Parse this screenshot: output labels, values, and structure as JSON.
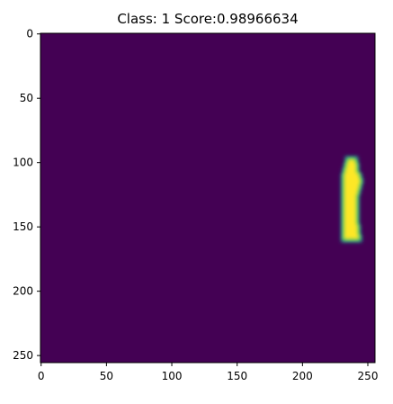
{
  "chart_data": {
    "type": "heatmap",
    "title": "Class: 1 Score:0.98966634",
    "xlabel": "",
    "ylabel": "",
    "xlim": [
      0,
      256
    ],
    "ylim": [
      256,
      0
    ],
    "grid": false,
    "colormap": "viridis",
    "x_ticks": [
      0,
      50,
      100,
      150,
      200,
      250
    ],
    "y_ticks": [
      0,
      50,
      100,
      150,
      200,
      250
    ],
    "background_value": 0,
    "mask_value": 1,
    "mask_rows": [
      {
        "y": 97,
        "x0": 234,
        "x1": 241
      },
      {
        "y": 101,
        "x0": 233,
        "x1": 242
      },
      {
        "y": 105,
        "x0": 232,
        "x1": 242
      },
      {
        "y": 109,
        "x0": 231,
        "x1": 244
      },
      {
        "y": 113,
        "x0": 231,
        "x1": 245
      },
      {
        "y": 117,
        "x0": 231,
        "x1": 244
      },
      {
        "y": 121,
        "x0": 231,
        "x1": 243
      },
      {
        "y": 125,
        "x0": 231,
        "x1": 242
      },
      {
        "y": 129,
        "x0": 231,
        "x1": 242
      },
      {
        "y": 133,
        "x0": 231,
        "x1": 242
      },
      {
        "y": 137,
        "x0": 231,
        "x1": 242
      },
      {
        "y": 141,
        "x0": 231,
        "x1": 242
      },
      {
        "y": 145,
        "x0": 231,
        "x1": 242
      },
      {
        "y": 149,
        "x0": 231,
        "x1": 243
      },
      {
        "y": 153,
        "x0": 231,
        "x1": 243
      },
      {
        "y": 157,
        "x0": 231,
        "x1": 244
      }
    ]
  },
  "colors": {
    "background": "#440154",
    "mask_core": "#fde725",
    "mask_edge": "#21918c",
    "mask_mid": "#5ec962",
    "axis": "#000000"
  }
}
